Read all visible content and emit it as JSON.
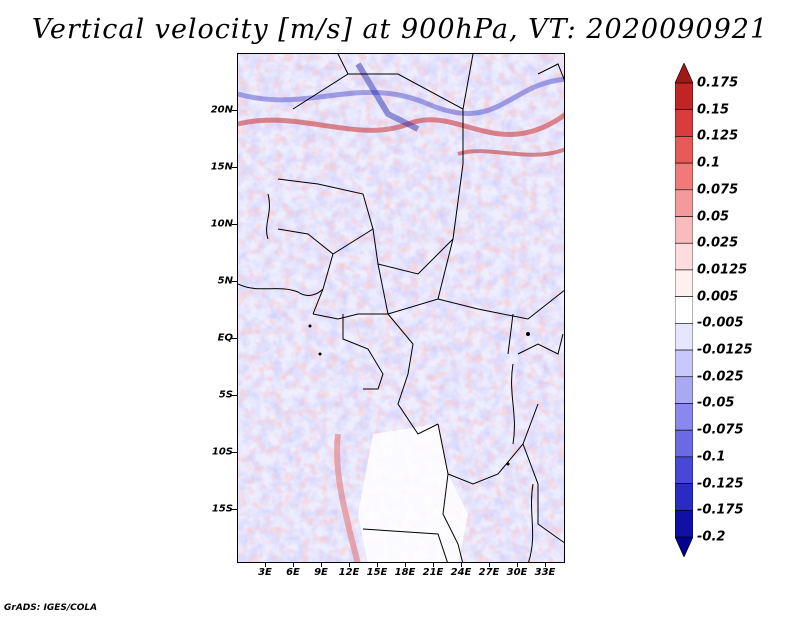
{
  "title": "Vertical velocity [m/s] at 900hPa, VT: 2020090921",
  "footer": "GrADS: IGES/COLA",
  "map": {
    "lat_labels": [
      "20N",
      "15N",
      "10N",
      "5N",
      "EQ",
      "5S",
      "10S",
      "15S"
    ],
    "lon_labels": [
      "3E",
      "6E",
      "9E",
      "12E",
      "15E",
      "18E",
      "21E",
      "24E",
      "27E",
      "30E",
      "33E"
    ]
  },
  "colorbar": {
    "labels": [
      "0.175",
      "0.15",
      "0.125",
      "0.1",
      "0.075",
      "0.05",
      "0.025",
      "0.0125",
      "0.005",
      "-0.005",
      "-0.0125",
      "-0.025",
      "-0.05",
      "-0.075",
      "-0.1",
      "-0.125",
      "-0.175",
      "-0.2"
    ],
    "colors": [
      "#a01818",
      "#c02424",
      "#d83c3c",
      "#e85a5a",
      "#f07a7a",
      "#f49a9a",
      "#f8bcbc",
      "#fcdcdc",
      "#fff0f0",
      "#ffffff",
      "#e6e6ff",
      "#c8c8fa",
      "#a8a8f4",
      "#8888ee",
      "#6a6ae4",
      "#4848d8",
      "#2a2ac4",
      "#1010a8",
      "#000090"
    ]
  }
}
